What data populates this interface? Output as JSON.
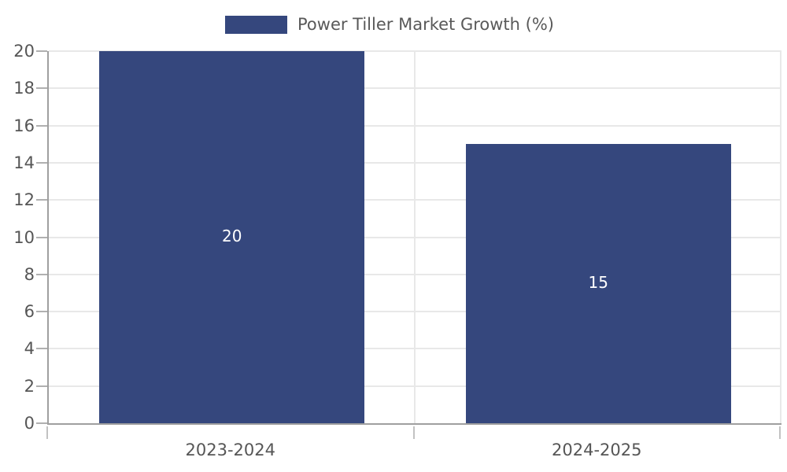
{
  "chart_data": {
    "type": "bar",
    "title": "",
    "legend": {
      "label": "Power Tiller Market Growth (%)",
      "position": "top-center"
    },
    "categories": [
      "2023-2024",
      "2024-2025"
    ],
    "series": [
      {
        "name": "Power Tiller Market Growth (%)",
        "values": [
          20,
          15
        ]
      }
    ],
    "value_labels": [
      "20",
      "15"
    ],
    "xlabel": "",
    "ylabel": "",
    "ylim": [
      0,
      20
    ],
    "ytick_step": 2,
    "yticks": [
      0,
      2,
      4,
      6,
      8,
      10,
      12,
      14,
      16,
      18,
      20
    ],
    "grid": true,
    "bar_width_fraction": 0.723,
    "colors": {
      "bar": "#35477d",
      "grid": "#e8e8e8",
      "axis": "#9f9f9f",
      "tick_label": "#565656",
      "value_label": "#ffffff",
      "legend_text": "#595959",
      "background": "#ffffff"
    }
  }
}
